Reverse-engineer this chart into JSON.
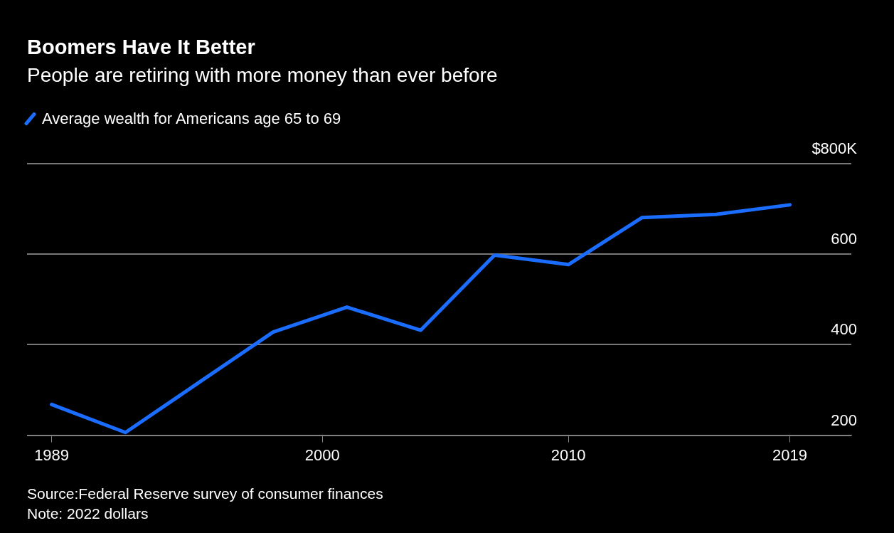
{
  "chart_data": {
    "type": "line",
    "title": "Boomers Have It Better",
    "subtitle": "People are retiring with more money than ever before",
    "x": [
      1989,
      1992,
      1995,
      1998,
      2001,
      2004,
      2007,
      2010,
      2013,
      2016,
      2019
    ],
    "series": [
      {
        "name": "Average wealth for Americans age 65 to 69",
        "color": "#1a6dff",
        "values": [
          268,
          206,
          317,
          428,
          483,
          432,
          598,
          577,
          681,
          688,
          709
        ]
      }
    ],
    "xlim": [
      1988,
      2021.5
    ],
    "xticks": [
      1989,
      2000,
      2010,
      2019
    ],
    "ylim": [
      200,
      800
    ],
    "yticks": [
      200,
      400,
      600,
      {
        "value": 800,
        "label": "$800K"
      }
    ],
    "grid": "y",
    "legend": "top left",
    "marker": "none",
    "line_style": "solid",
    "annotations": [
      "Source:Federal Reserve survey of consumer finances",
      "Note: 2022 dollars"
    ]
  }
}
